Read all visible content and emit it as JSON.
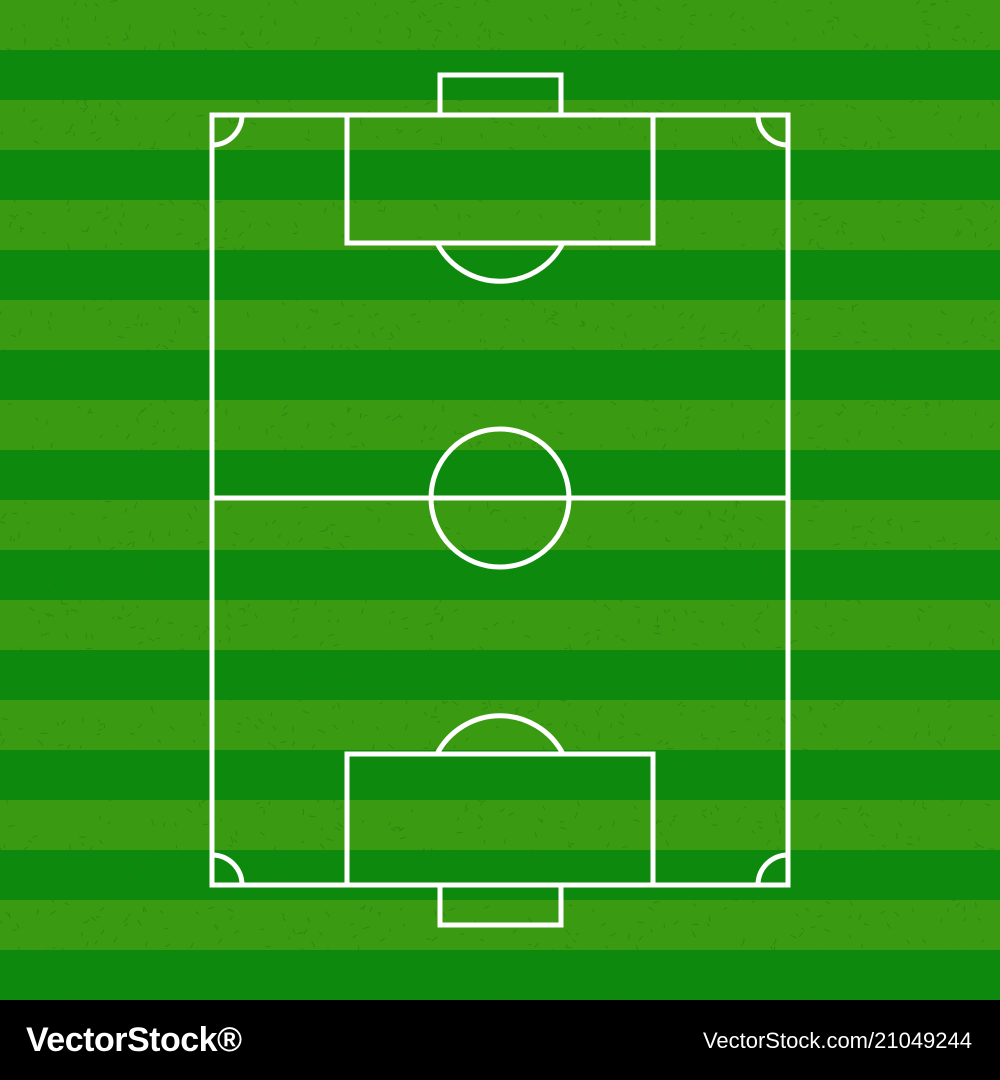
{
  "colors": {
    "stripe_light": "#3a9a12",
    "stripe_dark": "#0d8a0d",
    "line": "#ffffff",
    "footer_bg": "#000000",
    "footer_text": "#ffffff"
  },
  "footer": {
    "brand": "VectorStock®",
    "image_ref": "VectorStock.com/21049244"
  }
}
